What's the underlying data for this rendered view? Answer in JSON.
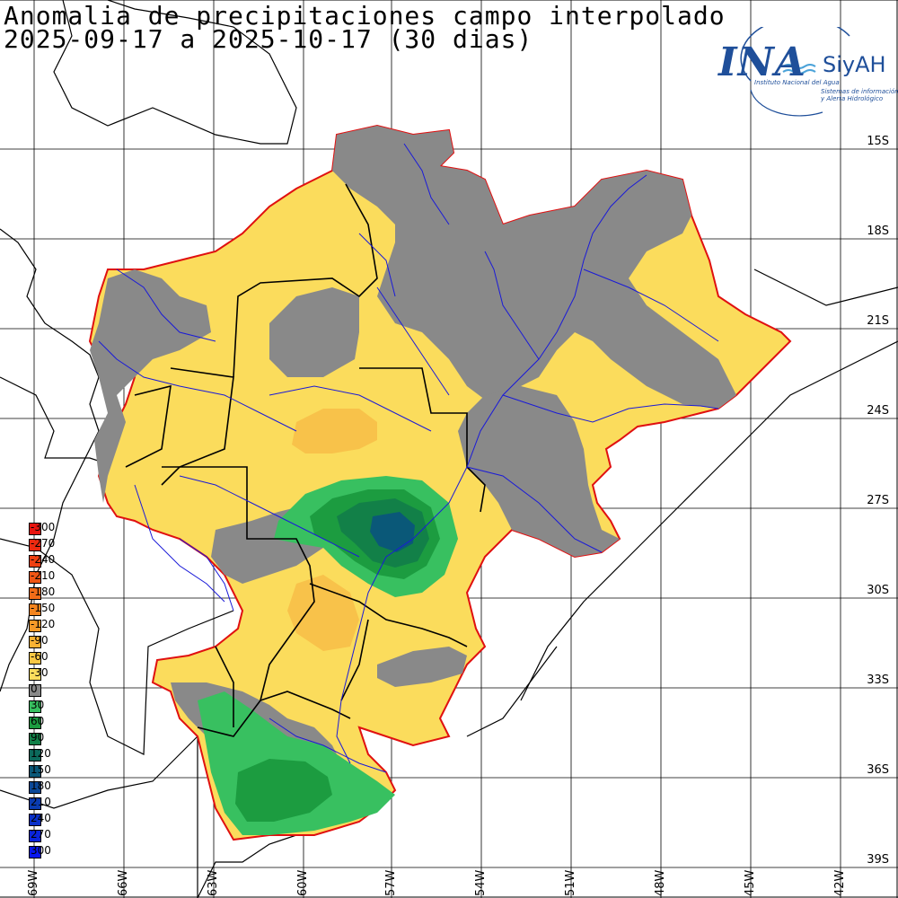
{
  "title": {
    "line1": "Anomalia de precipitaciones campo interpolado",
    "line2": "2025-09-17 a 2025-10-17 (30 dias)"
  },
  "logo": {
    "main": "INA",
    "brand": "SiyAH",
    "subtitle1": "Instituto Nacional del Agua",
    "subtitle2": "Sistemas de información",
    "subtitle3": "y Alerta Hidrológico",
    "color": "#1f4f9a"
  },
  "legend": {
    "items": [
      {
        "label": "-300",
        "color": "#e8140f"
      },
      {
        "label": "-270",
        "color": "#ec2a10"
      },
      {
        "label": "-240",
        "color": "#ee4012"
      },
      {
        "label": "-210",
        "color": "#f05614"
      },
      {
        "label": "-180",
        "color": "#f26c18"
      },
      {
        "label": "-150",
        "color": "#f4841e"
      },
      {
        "label": "-120",
        "color": "#f69a28"
      },
      {
        "label": "-90",
        "color": "#f8b234"
      },
      {
        "label": "-60",
        "color": "#fac844"
      },
      {
        "label": "-30",
        "color": "#fbdc5c"
      },
      {
        "label": "0",
        "color": "#898989"
      },
      {
        "label": "30",
        "color": "#38c060"
      },
      {
        "label": "60",
        "color": "#1c9c40"
      },
      {
        "label": "90",
        "color": "#128048"
      },
      {
        "label": "120",
        "color": "#0c6a5c"
      },
      {
        "label": "150",
        "color": "#0a5878"
      },
      {
        "label": "180",
        "color": "#0a4898"
      },
      {
        "label": "210",
        "color": "#0a3cb0"
      },
      {
        "label": "240",
        "color": "#0a30c8"
      },
      {
        "label": "270",
        "color": "#0a24dc"
      },
      {
        "label": "300",
        "color": "#0a18f0"
      }
    ]
  },
  "axes": {
    "lat_labels": [
      "15S",
      "18S",
      "21S",
      "24S",
      "27S",
      "30S",
      "33S",
      "36S",
      "39S"
    ],
    "lon_labels": [
      "69W",
      "66W",
      "63W",
      "60W",
      "57W",
      "54W",
      "51W",
      "48W",
      "45W",
      "42W"
    ]
  },
  "colors": {
    "anomaly_zero": "#898989",
    "dry": "#fbdc5c",
    "drier": "#f8c24a",
    "wet": "#38c060",
    "wetter": "#1c9c40",
    "very_wet": "#128048",
    "wettest": "#0a5878",
    "basin_outline": "#e01010",
    "rivers": "#1a1ad8",
    "borders": "#000000"
  }
}
